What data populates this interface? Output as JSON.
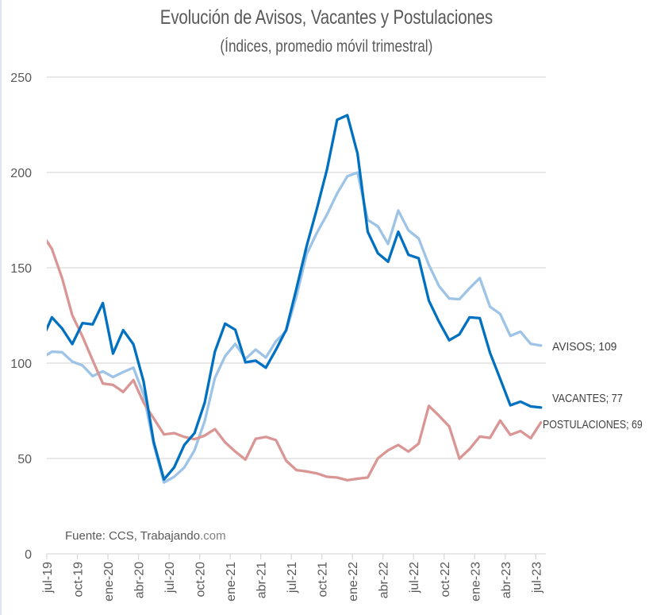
{
  "chart_data": {
    "type": "line",
    "title": "Evolución de Avisos, Vacantes y Postulaciones",
    "subtitle": "(Índices, promedio móvil trimestral)",
    "xlabel": "",
    "ylabel": "",
    "ylim": [
      0,
      250
    ],
    "yticks": [
      0,
      50,
      100,
      150,
      200,
      250
    ],
    "grid": true,
    "legend": "end-of-line labels (right)",
    "source": {
      "prefix": "Fuente: CCS, Trabajando",
      "suffix": ".com"
    },
    "x": [
      "jun-19",
      "jul-19",
      "ago-19",
      "sep-19",
      "oct-19",
      "nov-19",
      "dic-19",
      "ene-20",
      "feb-20",
      "mar-20",
      "abr-20",
      "may-20",
      "jun-20",
      "jul-20",
      "ago-20",
      "sep-20",
      "oct-20",
      "nov-20",
      "dic-20",
      "ene-21",
      "feb-21",
      "mar-21",
      "abr-21",
      "may-21",
      "jun-21",
      "jul-21",
      "ago-21",
      "sep-21",
      "oct-21",
      "nov-21",
      "dic-21",
      "ene-22",
      "feb-22",
      "mar-22",
      "abr-22",
      "may-22",
      "jun-22",
      "jul-22",
      "ago-22",
      "sep-22",
      "oct-22",
      "nov-22",
      "dic-22",
      "ene-23",
      "feb-23",
      "mar-23",
      "abr-23",
      "may-23",
      "jun-23",
      "jul-23"
    ],
    "xtick_labels": [
      "jul-19",
      "oct-19",
      "ene-20",
      "abr-20",
      "jul-20",
      "oct-20",
      "ene-21",
      "abr-21",
      "jul-21",
      "oct-21",
      "ene-22",
      "abr-22",
      "jul-22",
      "oct-22",
      "ene-23",
      "abr-23",
      "jul-23"
    ],
    "series": [
      {
        "name": "AVISOS",
        "end_label": "AVISOS; 109",
        "color": "#9DC3E6",
        "values": [
          102.6,
          106,
          105.7,
          100.8,
          98.8,
          93.2,
          95.7,
          92.7,
          95.3,
          97.6,
          83.5,
          57.1,
          37.4,
          40.4,
          45.3,
          54.3,
          69.6,
          92.2,
          103.6,
          110.1,
          102.2,
          107.1,
          102.9,
          111.5,
          116.8,
          134.9,
          157.1,
          168.2,
          177.9,
          189,
          198,
          199.9,
          175.1,
          171.7,
          162.5,
          180,
          169.6,
          165.4,
          151.5,
          140.4,
          133.9,
          133.5,
          139.3,
          144.6,
          129.6,
          125.8,
          114.3,
          116.5,
          110.1,
          109.2
        ]
      },
      {
        "name": "VACANTES",
        "end_label": "VACANTES; 77",
        "color": "#0070C0",
        "values": [
          112,
          124,
          118.2,
          110,
          121,
          120.3,
          131.5,
          105,
          117.3,
          109.9,
          90.4,
          58.5,
          39,
          45.3,
          57.1,
          63.3,
          79.3,
          106,
          120.7,
          117.5,
          100.4,
          101.3,
          97.6,
          107.1,
          117.5,
          139,
          161.3,
          180.7,
          201.5,
          227.6,
          230,
          209.9,
          168.9,
          157.6,
          153.2,
          168.9,
          156.8,
          155,
          132.8,
          121.7,
          112,
          115.1,
          124,
          123.6,
          105.5,
          91.8,
          77.9,
          79.8,
          77.3,
          76.7
        ]
      },
      {
        "name": "POSTULACIONES",
        "end_label": "POSTULACIONES; 69",
        "color": "#D99694",
        "values": [
          168,
          159.9,
          144.6,
          125.1,
          114,
          101.5,
          89.3,
          88.6,
          84.9,
          91.1,
          79.3,
          71,
          62.6,
          63.3,
          61.3,
          60.1,
          62,
          65.4,
          58.5,
          53.6,
          49.4,
          60.3,
          61.3,
          59.6,
          48.8,
          43.9,
          43.2,
          42.2,
          40.4,
          40,
          38.6,
          39.4,
          40,
          50.1,
          54.3,
          57.1,
          53.6,
          57.8,
          77.6,
          72.4,
          66.8,
          49.9,
          55,
          61.5,
          60.8,
          69.9,
          62.4,
          64.4,
          60.6,
          68.9
        ]
      }
    ]
  }
}
